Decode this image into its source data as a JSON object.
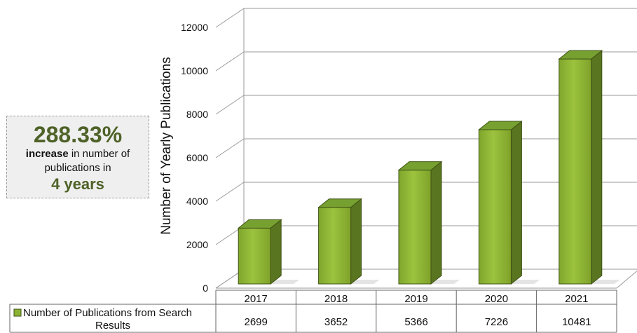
{
  "callout": {
    "percent": "288.33%",
    "line1_bold": "increase",
    "line1_rest": " in number of",
    "line2": "publications in",
    "line3": "4 years"
  },
  "chart_data": {
    "type": "bar",
    "style": "3d-column",
    "categories": [
      "2017",
      "2018",
      "2019",
      "2020",
      "2021"
    ],
    "series": [
      {
        "name": "Number of Publications from Search Results",
        "values": [
          2699,
          3652,
          5366,
          7226,
          10481
        ]
      }
    ],
    "ylabel": "Number of Yearly Publications",
    "xlabel": "",
    "ylim": [
      0,
      12000
    ],
    "yticks": [
      "0",
      "2000",
      "4000",
      "6000",
      "8000",
      "10000",
      "12000"
    ],
    "grid": true,
    "data_table": true,
    "legend": "in data table",
    "colors": {
      "bar_front": "#8db334",
      "bar_side": "#5a7520",
      "bar_top": "#76a030",
      "grid": "#9a9a9a"
    }
  }
}
